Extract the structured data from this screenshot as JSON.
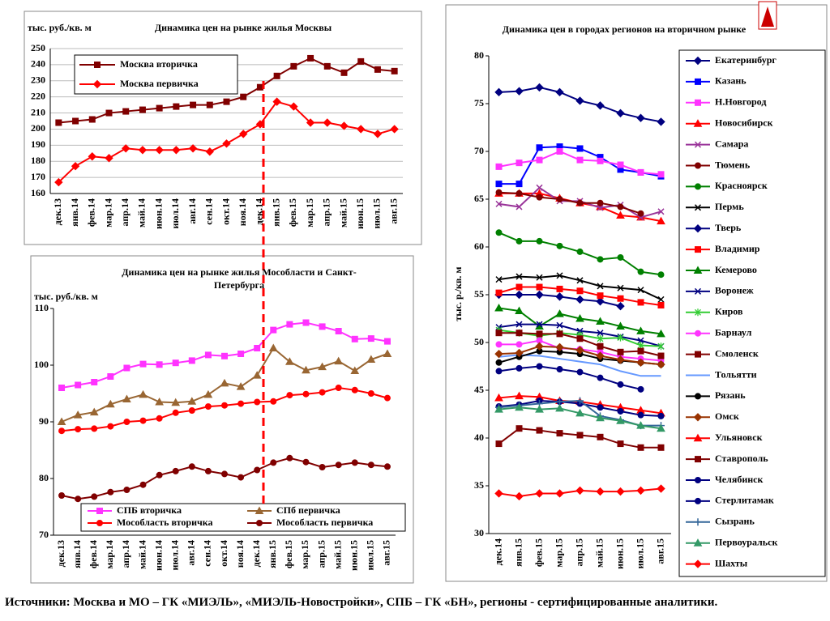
{
  "chart_data": [
    {
      "type": "line",
      "title": "Динамика цен на рынке жилья Москвы",
      "y_label": "тыс. руб./кв. м",
      "grid": true,
      "legend": "upper left",
      "categories": [
        "дек.13",
        "янв.14",
        "фев.14",
        "мар.14",
        "апр.14",
        "май.14",
        "июн.14",
        "июл.14",
        "авг.14",
        "сен.14",
        "окт.14",
        "ноя.14",
        "дек.14",
        "янв.15",
        "фев.15",
        "мар.15",
        "апр.15",
        "май.15",
        "июн.15",
        "июл.15",
        "авг.15"
      ],
      "ylim": [
        160,
        250
      ],
      "yticks": [
        160,
        170,
        180,
        190,
        200,
        210,
        220,
        230,
        240,
        250
      ],
      "series": [
        {
          "name": "Москва вторичка",
          "color": "#800000",
          "marker": "square",
          "values": [
            204,
            205,
            206,
            210,
            211,
            212,
            213,
            214,
            215,
            215,
            217,
            220,
            226,
            233,
            239,
            244,
            239,
            235,
            242,
            237,
            236
          ]
        },
        {
          "name": "Москва первичка",
          "color": "#ff0000",
          "marker": "diamond",
          "values": [
            167,
            177,
            183,
            182,
            188,
            187,
            187,
            187,
            188,
            186,
            191,
            197,
            203,
            217,
            214,
            204,
            204,
            202,
            200,
            197,
            200
          ]
        }
      ]
    },
    {
      "type": "line",
      "title": "Динамика цен на рынке жилья Мособласти и Санкт-Петербурга",
      "y_label": "тыс. руб./кв. м",
      "grid": false,
      "legend": "lower center",
      "categories": [
        "дек.13",
        "янв.14",
        "фев.14",
        "мар.14",
        "апр.14",
        "май.14",
        "июн.14",
        "июл.14",
        "авг.14",
        "сен.14",
        "окт.14",
        "ноя.14",
        "дек.14",
        "янв.15",
        "фев.15",
        "мар.15",
        "апр.15",
        "май.15",
        "июн.15",
        "июл.15",
        "авг.15"
      ],
      "ylim": [
        70,
        110
      ],
      "yticks": [
        70,
        80,
        90,
        100,
        110
      ],
      "series": [
        {
          "name": "СПБ вторичка",
          "color": "#ff33ff",
          "marker": "square",
          "values": [
            96,
            96.5,
            97,
            98,
            99.5,
            100.2,
            100.1,
            100.4,
            100.8,
            101.8,
            101.6,
            102,
            103,
            106.2,
            107.2,
            107.5,
            106.8,
            106,
            104.6,
            104.7,
            104.2
          ]
        },
        {
          "name": "СПб первичка",
          "color": "#996633",
          "marker": "triangle",
          "values": [
            90,
            91.2,
            91.7,
            93.1,
            94,
            94.8,
            93.5,
            93.4,
            93.6,
            94.8,
            96.8,
            96.2,
            98.2,
            103,
            100.6,
            99.1,
            99.7,
            100.7,
            99,
            101,
            102
          ]
        },
        {
          "name": "Мособласть вторичка",
          "color": "#ff0000",
          "marker": "circle",
          "values": [
            88.4,
            88.7,
            88.8,
            89.2,
            90,
            90.2,
            90.6,
            91.6,
            92,
            92.7,
            92.9,
            93.2,
            93.5,
            93.6,
            94.7,
            94.9,
            95.2,
            96,
            95.6,
            95,
            94.2
          ]
        },
        {
          "name": "Мособласть первичка",
          "color": "#800000",
          "marker": "circle",
          "values": [
            77,
            76.4,
            76.8,
            77.6,
            78,
            78.9,
            80.6,
            81.3,
            82.1,
            81.3,
            80.8,
            80.2,
            81.5,
            82.8,
            83.6,
            82.9,
            82,
            82.4,
            82.8,
            82.4,
            82.1
          ]
        }
      ]
    },
    {
      "type": "line",
      "title": "Динамика цен в городах регионов на вторичном рынке",
      "y_label": "тыс. р./кв. м",
      "grid": false,
      "legend": "right",
      "categories": [
        "дек.14",
        "янв.15",
        "фев.15",
        "мар.15",
        "апр.15",
        "май.15",
        "июн.15",
        "июл.15",
        "авг.15"
      ],
      "ylim": [
        30,
        80
      ],
      "yticks": [
        30,
        35,
        40,
        45,
        50,
        55,
        60,
        65,
        70,
        75,
        80
      ],
      "series": [
        {
          "name": "Екатеринбург",
          "color": "#000080",
          "marker": "diamond",
          "values": [
            76.2,
            76.3,
            76.7,
            76.2,
            75.3,
            74.8,
            74,
            73.5,
            73.1
          ]
        },
        {
          "name": "Казань",
          "color": "#0000ff",
          "marker": "square",
          "values": [
            66.6,
            66.6,
            70.4,
            70.5,
            70.3,
            69.4,
            68.1,
            67.8,
            67.4
          ]
        },
        {
          "name": "Н.Новгород",
          "color": "#ff33ff",
          "marker": "square",
          "values": [
            68.4,
            68.8,
            69.1,
            70,
            69.1,
            69,
            68.6,
            67.8,
            67.6
          ]
        },
        {
          "name": "Новосибирск",
          "color": "#ff0000",
          "marker": "triangle",
          "values": [
            65.6,
            65.6,
            65.6,
            65.1,
            64.6,
            64.2,
            63.3,
            63.1,
            62.7
          ]
        },
        {
          "name": "Самара",
          "color": "#993399",
          "marker": "x",
          "values": [
            64.5,
            64.2,
            66.2,
            64.8,
            64.8,
            64.1,
            64.4,
            63.1,
            63.7
          ]
        },
        {
          "name": "Тюмень",
          "color": "#800000",
          "marker": "circle",
          "values": [
            65.7,
            65.6,
            65.2,
            65,
            64.6,
            64.6,
            64.2,
            63.5,
            null
          ]
        },
        {
          "name": "Красноярск",
          "color": "#008000",
          "marker": "circle",
          "values": [
            61.5,
            60.6,
            60.6,
            60.1,
            59.5,
            58.7,
            58.9,
            57.4,
            57.1
          ]
        },
        {
          "name": "Пермь",
          "color": "#000000",
          "marker": "x",
          "values": [
            56.6,
            56.9,
            56.8,
            57,
            56.5,
            55.9,
            55.7,
            55.5,
            54.5
          ]
        },
        {
          "name": "Тверь",
          "color": "#000080",
          "marker": "diamond",
          "values": [
            55,
            55,
            55,
            54.8,
            54.5,
            54.3,
            53.8,
            null,
            null
          ]
        },
        {
          "name": "Владимир",
          "color": "#ff0000",
          "marker": "square",
          "values": [
            55.2,
            55.8,
            55.8,
            55.6,
            55.4,
            54.9,
            54.6,
            54.2,
            53.9
          ]
        },
        {
          "name": "Кемерово",
          "color": "#008000",
          "marker": "triangle",
          "values": [
            53.6,
            53.3,
            51.7,
            53,
            52.5,
            52.2,
            51.7,
            51.2,
            50.9
          ]
        },
        {
          "name": "Воронеж",
          "color": "#000080",
          "marker": "x",
          "values": [
            51.6,
            51.9,
            51.9,
            51.8,
            51.2,
            51,
            50.6,
            50.2,
            49.6
          ]
        },
        {
          "name": "Киров",
          "color": "#33cc33",
          "marker": "star",
          "values": [
            51.3,
            51,
            50.7,
            51,
            50.8,
            50.4,
            50.5,
            49.7,
            49.6
          ]
        },
        {
          "name": "Барнаул",
          "color": "#ff33ff",
          "marker": "circle",
          "values": [
            49.8,
            49.8,
            50.2,
            49.4,
            49.3,
            49,
            48.5,
            48.3,
            48.1
          ]
        },
        {
          "name": "Смоленск",
          "color": "#800000",
          "marker": "square",
          "values": [
            51,
            51,
            50.9,
            50.9,
            50.4,
            49.6,
            49,
            49.1,
            48.6
          ]
        },
        {
          "name": "Тольятти",
          "color": "#6699ff",
          "marker": "none",
          "values": [
            48.5,
            48.7,
            48.6,
            48.3,
            48,
            47.7,
            47,
            46.5,
            46.5
          ]
        },
        {
          "name": "Рязань",
          "color": "#000000",
          "marker": "circle",
          "values": [
            47.9,
            48.5,
            49.1,
            49,
            48.8,
            48.3,
            48.1,
            47.9,
            47.7
          ]
        },
        {
          "name": "Омск",
          "color": "#993300",
          "marker": "diamond",
          "values": [
            48.8,
            48.9,
            49.6,
            49.5,
            49.2,
            48.6,
            48.2,
            47.9,
            47.7
          ]
        },
        {
          "name": "Ульяновск",
          "color": "#ff0000",
          "marker": "triangle",
          "values": [
            44.2,
            44.4,
            44.3,
            43.9,
            43.8,
            43.5,
            43.2,
            42.9,
            42.6
          ]
        },
        {
          "name": "Ставрополь",
          "color": "#800000",
          "marker": "square",
          "values": [
            39.4,
            41,
            40.8,
            40.5,
            40.3,
            40.1,
            39.4,
            39,
            39
          ]
        },
        {
          "name": "Челябинск",
          "color": "#000080",
          "marker": "circle",
          "values": [
            43.3,
            43.5,
            43.9,
            43.8,
            43.6,
            43.2,
            42.8,
            42.4,
            42.3
          ]
        },
        {
          "name": "Стерлитамак",
          "color": "#000080",
          "marker": "circle",
          "values": [
            47,
            47.3,
            47.5,
            47.2,
            46.9,
            46.3,
            45.6,
            45.1,
            null
          ]
        },
        {
          "name": "Сызрань",
          "color": "#336699",
          "marker": "plus",
          "values": [
            43.2,
            43.4,
            43.6,
            43.8,
            43.9,
            42.3,
            41.9,
            41.3,
            41.3
          ]
        },
        {
          "name": "Первоуральск",
          "color": "#339966",
          "marker": "triangle",
          "values": [
            43,
            43.2,
            43,
            43.1,
            42.6,
            42.1,
            41.8,
            41.3,
            41
          ]
        },
        {
          "name": "Шахты",
          "color": "#ff0000",
          "marker": "diamond",
          "values": [
            34.2,
            33.9,
            34.2,
            34.2,
            34.5,
            34.4,
            34.4,
            34.5,
            34.7
          ]
        }
      ]
    }
  ],
  "source": "Источники: Москва и МО – ГК «МИЭЛЬ», «МИЭЛЬ-Новостройки», СПБ – ГК «БН», регионы - сертифицированные аналитики."
}
